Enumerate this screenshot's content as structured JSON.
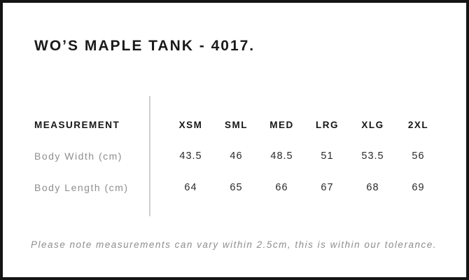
{
  "title": "WO’S MAPLE TANK - 4017.",
  "table": {
    "measurement_header": "MEASUREMENT",
    "size_headers": [
      "XSM",
      "SML",
      "MED",
      "LRG",
      "XLG",
      "2XL"
    ],
    "rows": [
      {
        "label": "Body Width (cm)",
        "values": [
          "43.5",
          "46",
          "48.5",
          "51",
          "53.5",
          "56"
        ]
      },
      {
        "label": "Body Length (cm)",
        "values": [
          "64",
          "65",
          "66",
          "67",
          "68",
          "69"
        ]
      }
    ]
  },
  "note": "Please note measurements can vary within 2.5cm, this is within our tolerance.",
  "colors": {
    "frame_border": "#141414",
    "divider": "#d0d0d0",
    "heading_text": "#1a1a1a",
    "muted_text": "#8e8e8e",
    "value_text": "#2a2a2a",
    "background": "#ffffff"
  }
}
